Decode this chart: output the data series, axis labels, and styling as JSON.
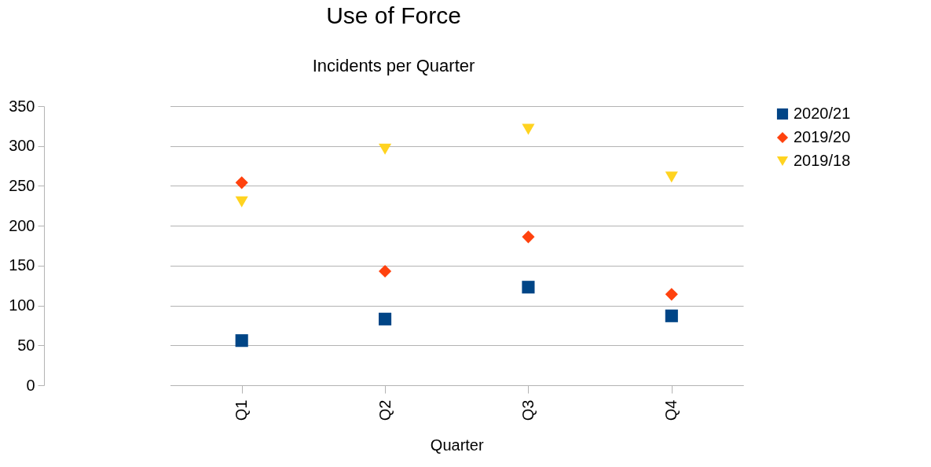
{
  "chart_data": {
    "type": "scatter",
    "title": "Use of Force",
    "subtitle": "Incidents per Quarter",
    "xlabel": "Quarter",
    "categories": [
      "Q1",
      "Q2",
      "Q3",
      "Q4"
    ],
    "series": [
      {
        "name": "2020/21",
        "color": "#004586",
        "marker": "square",
        "values": [
          56,
          83,
          123,
          87
        ]
      },
      {
        "name": "2019/20",
        "color": "#ff420e",
        "marker": "diamond",
        "values": [
          254,
          143,
          186,
          114
        ]
      },
      {
        "name": "2019/18",
        "color": "#ffd320",
        "marker": "triangle",
        "values": [
          230,
          296,
          321,
          261
        ]
      }
    ],
    "ylim": [
      0,
      350
    ],
    "yticks": [
      0,
      50,
      100,
      150,
      200,
      250,
      300,
      350
    ],
    "grid": "y",
    "legend": "right"
  }
}
